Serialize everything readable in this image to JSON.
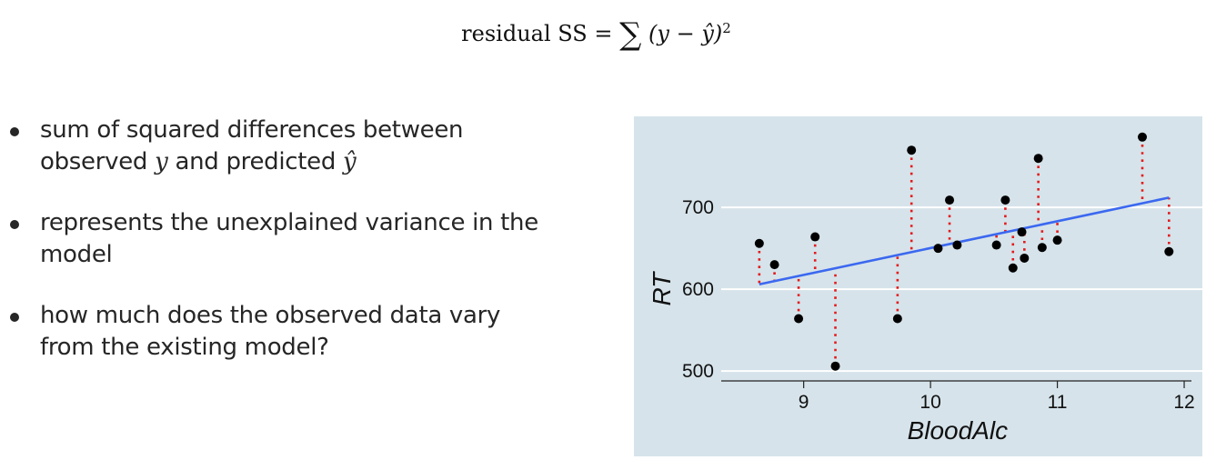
{
  "formula": {
    "lhs": "residual SS",
    "equals": "=",
    "sigma": "∑",
    "expr": "(y − ŷ)",
    "power": "2"
  },
  "bullets": [
    {
      "line1": "sum of squared differences between",
      "line2_pre": "observed ",
      "var_y": "y",
      "line2_mid": " and predicted ",
      "var_yhat": "ŷ"
    },
    {
      "line1": "represents the unexplained variance in the",
      "line2": "model"
    },
    {
      "line1": "how much does the observed data vary",
      "line2": "from the existing model?"
    }
  ],
  "chart_data": {
    "type": "scatter",
    "xlabel": "BloodAlc",
    "ylabel": "RT",
    "xlim": [
      8.35,
      12.05
    ],
    "ylim": [
      489,
      798
    ],
    "xticks": [
      9,
      10,
      11,
      12
    ],
    "yticks": [
      500,
      600,
      700
    ],
    "grid": true,
    "background": "#d6e3ea",
    "point_color": "#000000",
    "regression_line": {
      "color": "#3b68f0",
      "x": [
        8.65,
        11.88
      ],
      "y": [
        606,
        712
      ]
    },
    "residual_color": "#e41a1c",
    "points": [
      {
        "x": 8.65,
        "y": 656
      },
      {
        "x": 8.77,
        "y": 630
      },
      {
        "x": 8.96,
        "y": 564
      },
      {
        "x": 9.09,
        "y": 664
      },
      {
        "x": 9.25,
        "y": 506
      },
      {
        "x": 9.74,
        "y": 564
      },
      {
        "x": 9.85,
        "y": 770
      },
      {
        "x": 10.06,
        "y": 650
      },
      {
        "x": 10.15,
        "y": 709
      },
      {
        "x": 10.21,
        "y": 654
      },
      {
        "x": 10.52,
        "y": 654
      },
      {
        "x": 10.59,
        "y": 709
      },
      {
        "x": 10.65,
        "y": 626
      },
      {
        "x": 10.72,
        "y": 670
      },
      {
        "x": 10.74,
        "y": 638
      },
      {
        "x": 10.85,
        "y": 760
      },
      {
        "x": 10.88,
        "y": 651
      },
      {
        "x": 11.0,
        "y": 660
      },
      {
        "x": 11.67,
        "y": 786
      },
      {
        "x": 11.88,
        "y": 646
      }
    ]
  }
}
